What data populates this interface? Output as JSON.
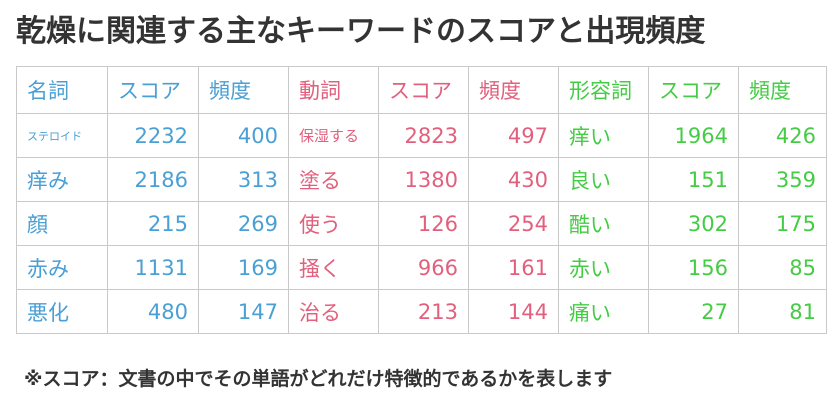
{
  "title": "乾燥に関連する主なキーワードのスコアと出現頻度",
  "colors": {
    "noun": "#4a9fd4",
    "verb": "#e2607d",
    "adjective": "#44cc44"
  },
  "headers": {
    "noun": "名詞",
    "noun_score": "スコア",
    "noun_freq": "頻度",
    "verb": "動詞",
    "verb_score": "スコア",
    "verb_freq": "頻度",
    "adj": "形容詞",
    "adj_score": "スコア",
    "adj_freq": "頻度"
  },
  "rows": [
    {
      "noun": "ステロイド",
      "noun_score": "2232",
      "noun_freq": "400",
      "verb": "保湿する",
      "verb_score": "2823",
      "verb_freq": "497",
      "adj": "痒い",
      "adj_score": "1964",
      "adj_freq": "426"
    },
    {
      "noun": "痒み",
      "noun_score": "2186",
      "noun_freq": "313",
      "verb": "塗る",
      "verb_score": "1380",
      "verb_freq": "430",
      "adj": "良い",
      "adj_score": "151",
      "adj_freq": "359"
    },
    {
      "noun": "顔",
      "noun_score": "215",
      "noun_freq": "269",
      "verb": "使う",
      "verb_score": "126",
      "verb_freq": "254",
      "adj": "酷い",
      "adj_score": "302",
      "adj_freq": "175"
    },
    {
      "noun": "赤み",
      "noun_score": "1131",
      "noun_freq": "169",
      "verb": "掻く",
      "verb_score": "966",
      "verb_freq": "161",
      "adj": "赤い",
      "adj_score": "156",
      "adj_freq": "85"
    },
    {
      "noun": "悪化",
      "noun_score": "480",
      "noun_freq": "147",
      "verb": "治る",
      "verb_score": "213",
      "verb_freq": "144",
      "adj": "痛い",
      "adj_score": "27",
      "adj_freq": "81"
    }
  ],
  "note": "※スコア：文書の中でその単語がどれだけ特徴的であるかを表します"
}
